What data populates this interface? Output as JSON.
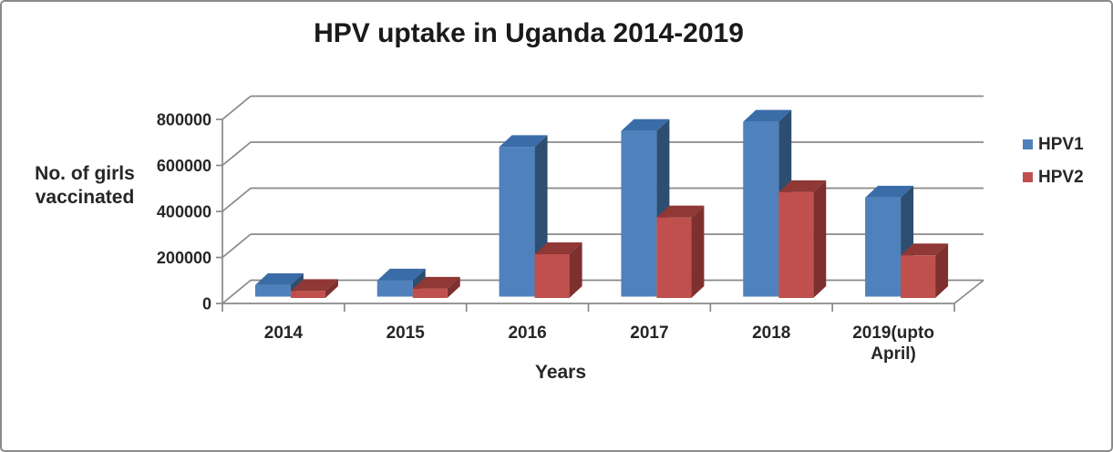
{
  "window": {
    "background": "#FFFFFF",
    "border_color": "#8A8A8A"
  },
  "chart_data": {
    "type": "bar",
    "variant": "3d-clustered-column",
    "title": "HPV uptake in Uganda 2014-2019",
    "xlabel": "Years",
    "ylabel": "No. of girls vaccinated",
    "categories": [
      "2014",
      "2015",
      "2016",
      "2017",
      "2018",
      "2019(upto April)"
    ],
    "series": [
      {
        "name": "HPV1",
        "color": "#4F81BD",
        "color_top": "#3A6CA8",
        "color_side": "#2E4E71",
        "values": [
          50000,
          70000,
          650000,
          720000,
          760000,
          430000
        ]
      },
      {
        "name": "HPV2",
        "color": "#C0504D",
        "color_top": "#8F3835",
        "color_side": "#7E302E",
        "values": [
          30000,
          40000,
          190000,
          350000,
          460000,
          185000
        ]
      }
    ],
    "ylim": [
      0,
      800000
    ],
    "y_ticks": [
      0,
      200000,
      400000,
      600000,
      800000
    ],
    "grid": true,
    "gridline_color": "#898989",
    "axis_color": "#898989",
    "legend_position": "right"
  }
}
